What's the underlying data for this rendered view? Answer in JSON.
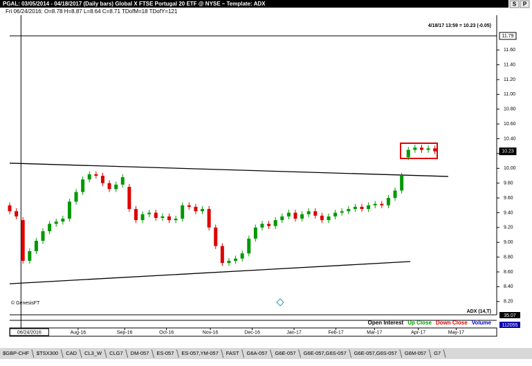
{
  "header": {
    "title": "PGAL:  03/05/2014 - 04/18/2017  (Daily bars)  Global X FTSE Portugal 20 ETF @ NYSE  –  Template: ADX",
    "info": "Fri  06/24/2016:  O=8.78  H=8.87  L=8.64  C=8.71  TDofM=18  TDofY=121",
    "buttons": [
      "S",
      "P"
    ]
  },
  "chart_data": {
    "type": "candlestick",
    "last_quote": "4/18/17 13:59 = 10.23 (-0.05)",
    "copyright": "© GenesisFT",
    "up_color": "#009900",
    "down_color": "#dd0000",
    "categories": [
      null,
      null,
      null,
      null,
      null,
      null,
      null,
      null,
      null,
      null,
      null,
      null,
      null,
      null,
      null,
      null,
      null,
      null,
      null,
      null,
      null,
      null,
      null,
      null,
      null,
      null,
      null,
      null,
      null,
      null,
      null,
      null,
      null,
      null,
      null,
      null,
      null,
      null,
      null,
      null,
      null,
      null,
      null,
      null,
      null,
      null,
      null,
      null,
      null,
      null,
      null,
      null,
      null,
      null,
      null,
      null,
      null,
      null,
      null,
      null,
      null,
      null,
      null,
      null,
      null
    ],
    "open": [
      9.5,
      9.42,
      9.3,
      8.75,
      8.88,
      9.02,
      9.15,
      9.25,
      9.28,
      9.32,
      9.55,
      9.68,
      9.85,
      9.92,
      9.9,
      9.8,
      9.72,
      9.78,
      9.75,
      9.45,
      9.3,
      9.38,
      9.4,
      9.33,
      9.35,
      9.3,
      9.32,
      9.5,
      9.48,
      9.42,
      9.45,
      9.2,
      8.95,
      8.72,
      8.75,
      8.78,
      8.85,
      9.05,
      9.2,
      9.25,
      9.22,
      9.3,
      9.35,
      9.4,
      9.32,
      9.38,
      9.42,
      9.36,
      9.3,
      9.35,
      9.4,
      9.42,
      9.45,
      9.48,
      9.45,
      9.5,
      9.52,
      9.5,
      9.6,
      9.7,
      10.15,
      10.25,
      10.28,
      10.25,
      10.27
    ],
    "high": [
      9.54,
      9.46,
      9.34,
      8.92,
      9.06,
      9.19,
      9.29,
      9.32,
      9.36,
      9.59,
      9.72,
      9.89,
      9.96,
      9.96,
      9.94,
      9.84,
      9.82,
      9.92,
      9.79,
      9.49,
      9.42,
      9.44,
      9.44,
      9.39,
      9.39,
      9.36,
      9.54,
      9.54,
      9.52,
      9.49,
      9.49,
      9.24,
      8.99,
      8.79,
      8.82,
      8.89,
      9.09,
      9.24,
      9.29,
      9.29,
      9.34,
      9.39,
      9.44,
      9.44,
      9.42,
      9.46,
      9.46,
      9.4,
      9.39,
      9.44,
      9.46,
      9.49,
      9.52,
      9.52,
      9.54,
      9.56,
      9.56,
      9.64,
      9.74,
      9.94,
      10.29,
      10.32,
      10.32,
      10.31,
      10.31
    ],
    "low": [
      9.38,
      9.31,
      8.71,
      8.71,
      8.84,
      8.98,
      9.11,
      9.21,
      9.24,
      9.28,
      9.51,
      9.64,
      9.81,
      9.86,
      9.76,
      9.68,
      9.68,
      9.74,
      9.41,
      9.26,
      9.26,
      9.34,
      9.29,
      9.29,
      9.26,
      9.26,
      9.28,
      9.44,
      9.38,
      9.38,
      9.16,
      8.91,
      8.68,
      8.68,
      8.71,
      8.74,
      8.81,
      9.01,
      9.16,
      9.18,
      9.18,
      9.26,
      9.31,
      9.28,
      9.28,
      9.34,
      9.32,
      9.26,
      9.26,
      9.31,
      9.36,
      9.38,
      9.41,
      9.41,
      9.41,
      9.46,
      9.46,
      9.46,
      9.56,
      9.66,
      10.11,
      10.21,
      10.21,
      10.21,
      10.19
    ],
    "close": [
      9.42,
      9.35,
      8.75,
      8.88,
      9.02,
      9.15,
      9.25,
      9.28,
      9.32,
      9.55,
      9.68,
      9.85,
      9.92,
      9.9,
      9.8,
      9.72,
      9.78,
      9.88,
      9.45,
      9.3,
      9.38,
      9.4,
      9.33,
      9.35,
      9.3,
      9.32,
      9.5,
      9.48,
      9.42,
      9.45,
      9.2,
      8.95,
      8.72,
      8.75,
      8.78,
      8.85,
      9.05,
      9.2,
      9.25,
      9.22,
      9.3,
      9.35,
      9.4,
      9.32,
      9.38,
      9.42,
      9.36,
      9.3,
      9.35,
      9.4,
      9.42,
      9.45,
      9.48,
      9.45,
      9.5,
      9.52,
      9.5,
      9.6,
      9.7,
      9.9,
      10.25,
      10.28,
      10.25,
      10.27,
      10.23
    ],
    "xlim": [
      0,
      73.3
    ],
    "xticks": [
      {
        "value": 1.7,
        "label": "06/24/2016"
      },
      {
        "value": 10.3,
        "label": "Aug-16"
      },
      {
        "value": 17.3,
        "label": "Sep-16"
      },
      {
        "value": 23.6,
        "label": "Oct-16"
      },
      {
        "value": 30.2,
        "label": "Nov-16"
      },
      {
        "value": 36.5,
        "label": "Dec-16"
      },
      {
        "value": 42.8,
        "label": "Jan-17"
      },
      {
        "value": 49.1,
        "label": "Feb-17"
      },
      {
        "value": 54.9,
        "label": "Mar-17"
      },
      {
        "value": 61.5,
        "label": "Apr-17"
      },
      {
        "value": 67.2,
        "label": "May-17"
      }
    ],
    "ylim": [
      8.02,
      12.07
    ],
    "yticks": [
      {
        "value": 8.2,
        "label": "8.20"
      },
      {
        "value": 8.4,
        "label": "8.40"
      },
      {
        "value": 8.6,
        "label": "8.60"
      },
      {
        "value": 8.8,
        "label": "8.80"
      },
      {
        "value": 9.0,
        "label": "9.00"
      },
      {
        "value": 9.2,
        "label": "9.20"
      },
      {
        "value": 9.4,
        "label": "9.40"
      },
      {
        "value": 9.6,
        "label": "9.60"
      },
      {
        "value": 9.8,
        "label": "9.80"
      },
      {
        "value": 10.0,
        "label": "10.00"
      },
      {
        "value": 10.2,
        "label": "10.20"
      },
      {
        "value": 10.4,
        "label": "10.40"
      },
      {
        "value": 10.6,
        "label": "10.60"
      },
      {
        "value": 10.8,
        "label": "10.80"
      },
      {
        "value": 11.0,
        "label": "11.00"
      },
      {
        "value": 11.2,
        "label": "11.20"
      },
      {
        "value": 11.4,
        "label": "11.40"
      },
      {
        "value": 11.6,
        "label": "11.60"
      }
    ],
    "price_markers": [
      11.79,
      10.23
    ],
    "trendlines": [
      {
        "x": [
          0,
          66
        ],
        "y": [
          10.07,
          9.89
        ]
      },
      {
        "x": [
          0,
          60.3
        ],
        "y": [
          8.44,
          8.74
        ]
      }
    ],
    "indicator_panel": {
      "title": "ADX (14,T)",
      "adx_value": 35.07,
      "legend": [
        "Open Interest",
        "Up Close",
        "Down Close",
        "Volume"
      ],
      "legend_colors": [
        "#000000",
        "#009900",
        "#dd0000",
        "#0000cc"
      ],
      "volume_value": 112055
    }
  },
  "tabs": [
    "$GBP-CHF",
    "$TSX300",
    "CAD",
    "CL3_W",
    "CLG7",
    "DM-057",
    "ES-057",
    "ES-057,YM-057",
    "FAST",
    "G6A-057",
    "G6E-057",
    "G6E-057,G6S-057",
    "G6E-057,G6S-057",
    "G6M-057",
    "G7"
  ]
}
